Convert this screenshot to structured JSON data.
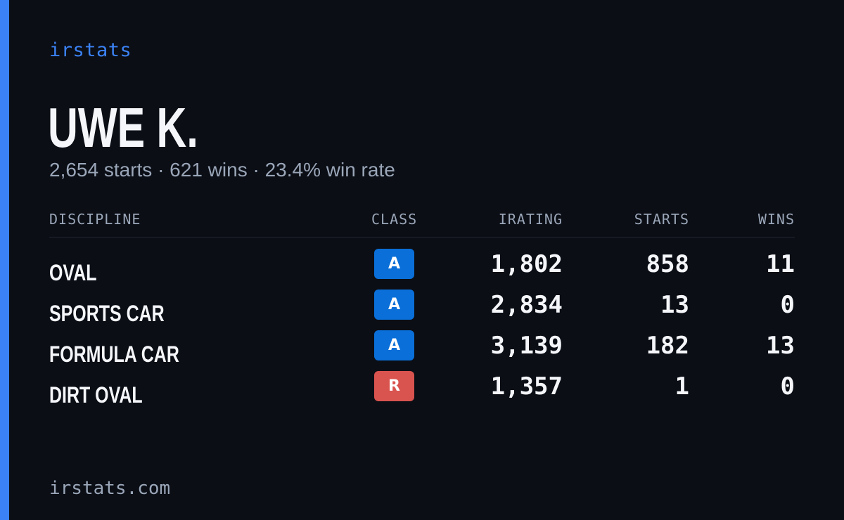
{
  "brand": "irstats",
  "player": {
    "name": "UWE K.",
    "summary": "2,654 starts · 621 wins · 23.4% win rate"
  },
  "table": {
    "headers": {
      "discipline": "DISCIPLINE",
      "class": "CLASS",
      "irating": "IRATING",
      "starts": "STARTS",
      "wins": "WINS"
    },
    "rows": [
      {
        "discipline": "OVAL",
        "class": "A",
        "class_color": "#0a6fd8",
        "irating": "1,802",
        "starts": "858",
        "wins": "11"
      },
      {
        "discipline": "SPORTS CAR",
        "class": "A",
        "class_color": "#0a6fd8",
        "irating": "2,834",
        "starts": "13",
        "wins": "0"
      },
      {
        "discipline": "FORMULA CAR",
        "class": "A",
        "class_color": "#0a6fd8",
        "irating": "3,139",
        "starts": "182",
        "wins": "13"
      },
      {
        "discipline": "DIRT OVAL",
        "class": "R",
        "class_color": "#d9534f",
        "irating": "1,357",
        "starts": "1",
        "wins": "0"
      }
    ]
  },
  "footer": {
    "url": "irstats.com"
  },
  "colors": {
    "accent": "#3b82f6",
    "background": "#0b0e15"
  }
}
